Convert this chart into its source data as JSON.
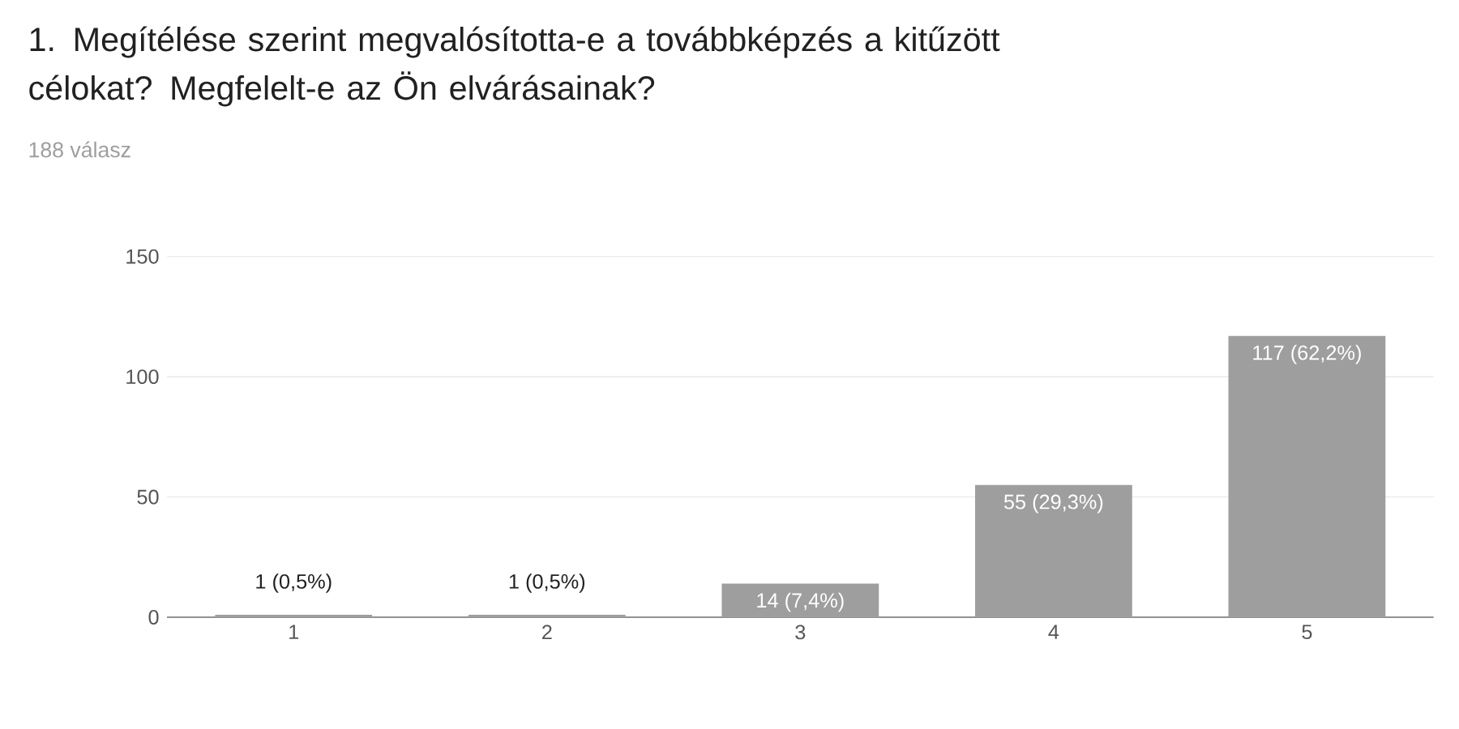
{
  "chart_data": {
    "type": "bar",
    "title": "1. Megítélése szerint megvalósította-e a továbbképzés a kitűzött célokat? Megfelelt-e az Ön elvárásainak?",
    "subtitle": "188 válasz",
    "categories": [
      "1",
      "2",
      "3",
      "4",
      "5"
    ],
    "values": [
      1,
      1,
      14,
      55,
      117
    ],
    "color": "#9e9e9e",
    "value_labels": [
      "1 (0,5%)",
      "1 (0,5%)",
      "14 (7,4%)",
      "55 (29,3%)",
      "117 (62,2%)"
    ],
    "ylim": [
      0,
      150
    ],
    "yticks": [
      0,
      50,
      100,
      150
    ],
    "grid": "y"
  }
}
